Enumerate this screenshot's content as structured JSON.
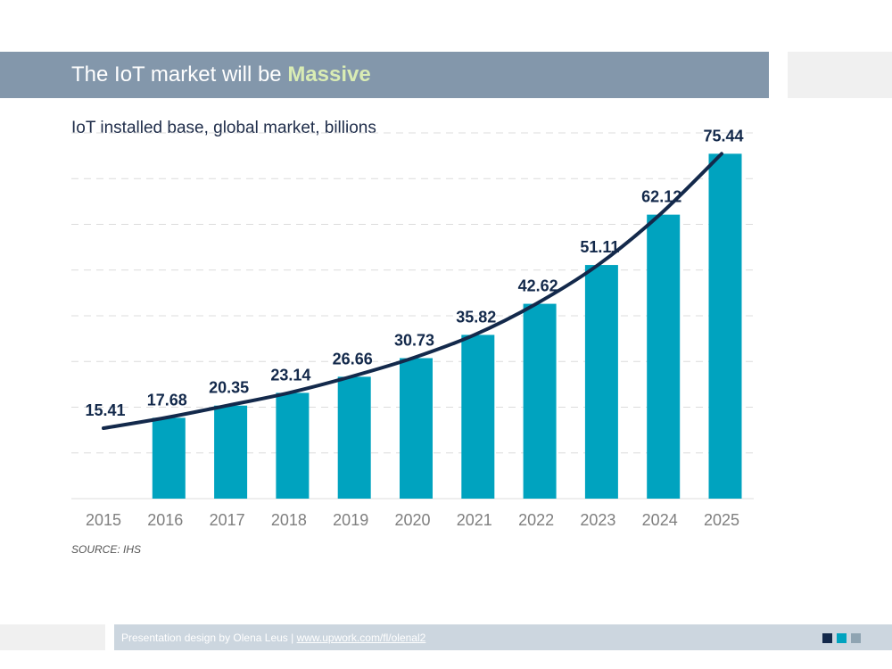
{
  "header": {
    "title_prefix": "The IoT market will be ",
    "title_accent": "Massive"
  },
  "subtitle": "IoT installed base, global market, billions",
  "source": "SOURCE: IHS",
  "footer": {
    "credit": "Presentation design by Olena Leus | ",
    "link": "www.upwork.com/fl/olenal2"
  },
  "colors": {
    "bar": "#00a3bf",
    "line": "#13294b",
    "label": "#13294b",
    "axis_text": "#7f7f7f",
    "sq1": "#13294b",
    "sq2": "#00a3bf",
    "sq3": "#8fa4b2"
  },
  "chart_data": {
    "type": "bar",
    "title": "IoT installed base, global market, billions",
    "xlabel": "",
    "ylabel": "",
    "categories": [
      "2015",
      "2016",
      "2017",
      "2018",
      "2019",
      "2020",
      "2021",
      "2022",
      "2023",
      "2024",
      "2025"
    ],
    "series": [
      {
        "name": "IoT installed base (billions)",
        "values": [
          15.41,
          17.68,
          20.35,
          23.14,
          26.66,
          30.73,
          35.82,
          42.62,
          51.11,
          62.12,
          75.44
        ]
      }
    ],
    "trend_line": true,
    "bars_from_index": 1,
    "ylim": [
      0,
      80
    ],
    "grid": true,
    "grid_style": "dashed"
  }
}
